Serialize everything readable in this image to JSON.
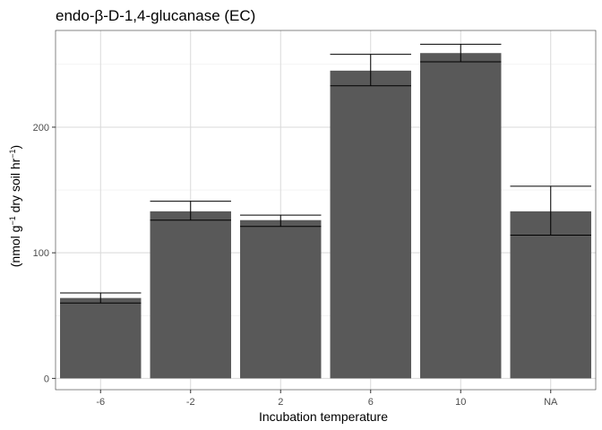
{
  "chart_data": {
    "type": "bar",
    "title": "endo-β-D-1,4-glucanase (EC)",
    "xlabel": "Incubation temperature",
    "ylabel": {
      "pre": "(nmol g",
      "sup1": "−1",
      "mid": " dry soil hr",
      "sup2": "−1",
      "post": ")"
    },
    "categories": [
      "-6",
      "-2",
      "2",
      "6",
      "10",
      "NA"
    ],
    "values": [
      64,
      133,
      126,
      245,
      259,
      133
    ],
    "error_low": [
      60,
      126,
      121,
      233,
      252,
      114
    ],
    "error_high": [
      68,
      141,
      130,
      258,
      266,
      153
    ],
    "ylim": [
      -9,
      277
    ],
    "yticks": [
      0,
      100,
      200
    ],
    "ytick_labels": [
      "0",
      "100",
      "200"
    ],
    "grid": true,
    "bar_color": "#595959",
    "panel_border_color": "#333333"
  }
}
